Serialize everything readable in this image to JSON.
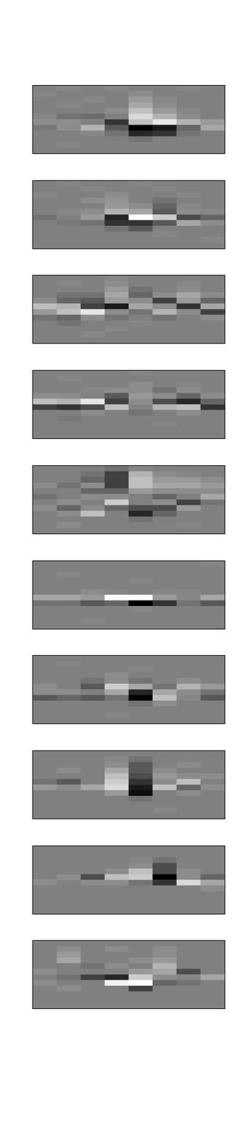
{
  "chart_data": [
    {
      "type": "heatmap",
      "tick_labels": false,
      "clim": [
        -1,
        1
      ],
      "cells": [
        [
          0,
          0.05,
          0,
          0.05,
          0,
          0,
          0.05,
          0
        ],
        [
          0.05,
          0,
          0,
          0,
          0.1,
          0,
          0,
          0
        ],
        [
          0,
          0,
          0.05,
          0,
          0.2,
          0.05,
          0,
          0
        ],
        [
          0,
          0.05,
          0,
          0,
          0.3,
          0.1,
          0,
          0
        ],
        [
          0,
          0,
          0,
          0.1,
          0.5,
          0.2,
          0.05,
          0
        ],
        [
          0.05,
          -0.1,
          -0.15,
          0,
          0.7,
          0.4,
          0.1,
          0
        ],
        [
          0.1,
          0.1,
          0,
          -0.6,
          0.5,
          0.8,
          0.4,
          0.2
        ],
        [
          -0.05,
          0.1,
          0.4,
          -0.3,
          -1,
          -0.8,
          -0.2,
          0.3
        ],
        [
          0,
          0,
          0.05,
          -0.1,
          -0.7,
          -0.6,
          -0.1,
          0
        ],
        [
          0,
          0,
          0,
          0,
          -0.1,
          0,
          0,
          0
        ],
        [
          0,
          0.05,
          0,
          0,
          0,
          0,
          0,
          0
        ],
        [
          0,
          0,
          0,
          0,
          0,
          0,
          0,
          0
        ]
      ]
    },
    {
      "type": "heatmap",
      "tick_labels": false,
      "clim": [
        -1,
        1
      ],
      "cells": [
        [
          0,
          0.05,
          0,
          0,
          0.05,
          0,
          0,
          0
        ],
        [
          0,
          0,
          0.05,
          0,
          0,
          0.05,
          0,
          0
        ],
        [
          0.05,
          0,
          0,
          0.1,
          0,
          0,
          0.05,
          0
        ],
        [
          0,
          0,
          0.1,
          0.15,
          0,
          -0.1,
          0,
          0
        ],
        [
          0,
          0,
          0,
          0.2,
          0.1,
          -0.2,
          0.05,
          0
        ],
        [
          0,
          0.05,
          0.1,
          0.4,
          0.3,
          -0.3,
          0.1,
          0.05
        ],
        [
          -0.1,
          0,
          0.2,
          -0.7,
          1,
          0.6,
          -0.4,
          -0.2
        ],
        [
          0,
          -0.05,
          -0.1,
          -0.6,
          -0.6,
          -0.3,
          0.3,
          0.1
        ],
        [
          0,
          0,
          0,
          -0.1,
          -0.3,
          0,
          0,
          0
        ],
        [
          0,
          0,
          0,
          0,
          0,
          0.05,
          0,
          0
        ],
        [
          0,
          0,
          0,
          0,
          0,
          0,
          0,
          0.05
        ],
        [
          0,
          0,
          0,
          0,
          0,
          0,
          0,
          0
        ]
      ]
    },
    {
      "type": "heatmap",
      "tick_labels": false,
      "clim": [
        -1,
        1
      ],
      "cells": [
        [
          0,
          0,
          0,
          0.05,
          0,
          0,
          0,
          0
        ],
        [
          0,
          0.05,
          0,
          0.1,
          0,
          0,
          0.05,
          0
        ],
        [
          0,
          0,
          0,
          0.2,
          -0.1,
          0,
          0.1,
          0
        ],
        [
          0,
          -0.1,
          -0.1,
          0.3,
          -0.2,
          0.1,
          0.3,
          0.1
        ],
        [
          0.1,
          -0.2,
          -0.3,
          0.2,
          0.1,
          -0.5,
          0.2,
          -0.2
        ],
        [
          0.5,
          0.4,
          -0.5,
          -0.8,
          0.3,
          0.1,
          -0.6,
          0.3
        ],
        [
          0.2,
          0.5,
          0.8,
          0.1,
          -0.1,
          0.4,
          0.1,
          -0.5
        ],
        [
          -0.1,
          -0.2,
          0.1,
          -0.1,
          0,
          -0.1,
          0,
          0.1
        ],
        [
          0,
          -0.1,
          0,
          0,
          0.05,
          0,
          0,
          0
        ],
        [
          0,
          0,
          0,
          0.05,
          0,
          0,
          0,
          0
        ],
        [
          0,
          0,
          0.05,
          0,
          0,
          0,
          0,
          0
        ],
        [
          0,
          0,
          0,
          0,
          0,
          0,
          0,
          0
        ]
      ]
    },
    {
      "type": "heatmap",
      "tick_labels": false,
      "clim": [
        -1,
        1
      ],
      "cells": [
        [
          0,
          0,
          0,
          0,
          0.05,
          0,
          0,
          0
        ],
        [
          0,
          0.05,
          0,
          0,
          0,
          0,
          0,
          0
        ],
        [
          0,
          0,
          0,
          0,
          0.1,
          0,
          0.05,
          0
        ],
        [
          0,
          0,
          0.05,
          0.1,
          0.1,
          -0.1,
          0.1,
          0
        ],
        [
          0.1,
          0.1,
          0,
          -0.3,
          0.2,
          0.1,
          -0.2,
          0.1
        ],
        [
          0.5,
          0.4,
          0.8,
          -0.5,
          0.1,
          -0.4,
          -0.7,
          -0.2
        ],
        [
          -0.5,
          -0.6,
          -0.4,
          0.5,
          0,
          0.4,
          0.5,
          -0.6
        ],
        [
          0,
          0,
          0.1,
          0,
          -0.1,
          0,
          0.1,
          0
        ],
        [
          0,
          -0.05,
          0,
          0,
          0,
          0,
          0,
          0
        ],
        [
          0,
          0,
          0,
          0,
          0,
          0.05,
          0,
          0
        ],
        [
          0,
          0,
          0,
          0,
          0,
          0,
          0,
          0
        ],
        [
          0,
          0,
          0,
          0,
          0,
          0,
          0,
          0
        ]
      ]
    },
    {
      "type": "heatmap",
      "tick_labels": false,
      "clim": [
        -1,
        1
      ],
      "cells": [
        [
          0,
          0,
          0,
          -0.1,
          0.05,
          0,
          0,
          0
        ],
        [
          0,
          0,
          -0.1,
          -0.5,
          0.4,
          0.1,
          0.05,
          0
        ],
        [
          0,
          0,
          -0.2,
          -0.5,
          0.5,
          0.2,
          0.2,
          0.1
        ],
        [
          0.1,
          -0.1,
          0.1,
          -0.5,
          0.5,
          0.3,
          0.3,
          0.2
        ],
        [
          0,
          0,
          -0.2,
          -0.2,
          0.2,
          0.1,
          0.1,
          0.1
        ],
        [
          -0.1,
          0,
          0.1,
          0.1,
          0,
          -0.2,
          0,
          0.3
        ],
        [
          0,
          0.1,
          0,
          0.6,
          0,
          0.1,
          -0.5,
          -0.1
        ],
        [
          0.1,
          -0.2,
          0.1,
          -0.2,
          -0.4,
          -0.4,
          0.2,
          0
        ],
        [
          0,
          0.1,
          0.5,
          0,
          -0.7,
          -0.2,
          0,
          0
        ],
        [
          0,
          0,
          0,
          0,
          -0.1,
          0,
          0,
          0
        ],
        [
          0,
          0.1,
          0,
          0,
          0,
          0,
          0.05,
          0
        ],
        [
          0,
          0,
          0,
          0,
          0,
          0,
          0,
          0
        ]
      ]
    },
    {
      "type": "heatmap",
      "tick_labels": false,
      "clim": [
        -1,
        1
      ],
      "cells": [
        [
          0,
          0,
          0,
          0,
          0,
          0,
          0,
          0.05
        ],
        [
          0,
          0,
          0,
          0,
          0,
          0,
          0,
          0
        ],
        [
          0,
          0.05,
          0,
          0,
          0,
          0,
          0,
          0
        ],
        [
          0,
          0,
          0,
          0,
          0.05,
          0,
          0,
          0
        ],
        [
          0,
          0,
          0,
          0,
          0,
          0,
          0,
          0
        ],
        [
          0,
          0,
          0.1,
          0.05,
          0,
          0.05,
          0.05,
          0
        ],
        [
          0.3,
          0.3,
          0.2,
          1,
          1,
          0.2,
          0.05,
          0.3
        ],
        [
          -0.1,
          -0.1,
          -0.3,
          -0.2,
          -1,
          -0.6,
          -0.1,
          -0.3
        ],
        [
          0,
          0,
          0,
          0,
          0.05,
          0,
          0,
          0
        ],
        [
          0,
          0,
          0,
          0,
          0,
          0,
          0,
          0
        ],
        [
          0,
          0,
          0.05,
          0,
          0,
          0,
          0,
          0
        ],
        [
          0,
          0,
          0,
          0,
          0,
          0,
          0,
          0
        ]
      ]
    },
    {
      "type": "heatmap",
      "tick_labels": false,
      "clim": [
        -1,
        1
      ],
      "cells": [
        [
          0,
          0,
          0,
          0,
          0,
          0,
          0,
          0
        ],
        [
          0,
          0.05,
          0,
          0,
          0,
          0,
          0,
          0
        ],
        [
          0,
          0,
          0,
          0,
          0.05,
          0,
          0,
          0
        ],
        [
          0,
          0,
          0,
          0.1,
          0,
          0,
          0,
          0
        ],
        [
          0,
          0,
          -0.1,
          0.1,
          -0.1,
          0,
          0.1,
          0
        ],
        [
          0.1,
          0,
          -0.3,
          0.6,
          0.3,
          -0.1,
          0.4,
          0.2
        ],
        [
          0.1,
          0.1,
          0,
          0.3,
          -0.7,
          0.3,
          0.1,
          -0.1
        ],
        [
          -0.3,
          -0.2,
          -0.3,
          -0.1,
          -1,
          0.5,
          0.05,
          -0.3
        ],
        [
          0,
          0,
          0,
          0,
          -0.1,
          0.1,
          0,
          0
        ],
        [
          0,
          0,
          0,
          0,
          0,
          0,
          0,
          0
        ],
        [
          0,
          0,
          0,
          0.05,
          0,
          0,
          0,
          0
        ],
        [
          0,
          0,
          0,
          0,
          0,
          0,
          0,
          0
        ]
      ]
    },
    {
      "type": "heatmap",
      "tick_labels": false,
      "clim": [
        -1,
        1
      ],
      "cells": [
        [
          0,
          0,
          0,
          0,
          0,
          0,
          0,
          0
        ],
        [
          0,
          0,
          0,
          0.05,
          -0.1,
          0,
          0,
          0
        ],
        [
          0,
          0,
          0,
          0.1,
          -0.3,
          0,
          0.1,
          0
        ],
        [
          0,
          0.1,
          0,
          0.3,
          -0.3,
          0.1,
          0,
          0
        ],
        [
          0,
          0,
          0,
          0.5,
          -0.4,
          0.2,
          0.1,
          0.1
        ],
        [
          -0.1,
          -0.3,
          0,
          0.6,
          -0.6,
          0.1,
          0.5,
          0
        ],
        [
          0.2,
          0.1,
          0.3,
          0.7,
          -0.8,
          0.5,
          -0.2,
          0.1
        ],
        [
          0,
          0,
          0,
          0.2,
          -0.9,
          0,
          0.1,
          0
        ],
        [
          0,
          0,
          0,
          0,
          -0.1,
          0,
          0,
          0
        ],
        [
          0,
          0,
          0,
          0,
          0,
          0,
          0,
          0
        ],
        [
          0,
          0,
          0,
          0,
          0,
          0.05,
          0,
          0
        ],
        [
          0,
          0,
          0,
          0,
          0,
          0,
          0,
          0
        ]
      ]
    },
    {
      "type": "heatmap",
      "tick_labels": false,
      "clim": [
        -1,
        1
      ],
      "cells": [
        [
          0,
          0,
          0,
          0,
          0,
          0,
          0,
          0
        ],
        [
          0,
          0,
          0,
          0,
          0,
          0,
          0,
          0
        ],
        [
          0,
          0,
          0,
          0,
          0.05,
          -0.1,
          0,
          0
        ],
        [
          0,
          0,
          0,
          0,
          0.1,
          -0.4,
          0,
          0
        ],
        [
          0,
          0,
          0,
          0.1,
          0.5,
          -0.4,
          0.1,
          0
        ],
        [
          0,
          0.1,
          -0.4,
          0.5,
          0.6,
          -1,
          0.1,
          -0.2
        ],
        [
          0.1,
          0,
          0.1,
          0.1,
          -0.1,
          -0.6,
          0.7,
          0.3
        ],
        [
          0,
          0,
          0,
          0,
          0,
          0,
          0,
          0.1
        ],
        [
          0,
          0,
          0,
          0,
          0,
          0,
          0,
          0
        ],
        [
          0,
          0,
          0,
          0,
          0,
          0,
          0,
          0
        ],
        [
          0,
          0,
          0,
          0,
          0,
          0,
          0,
          0
        ],
        [
          0,
          0,
          0,
          0,
          0,
          0,
          0,
          0
        ]
      ]
    },
    {
      "type": "heatmap",
      "tick_labels": false,
      "clim": [
        -1,
        1
      ],
      "cells": [
        [
          0,
          0,
          0,
          0,
          0,
          0,
          0,
          0
        ],
        [
          0,
          0.1,
          0,
          0.1,
          0,
          0.1,
          0,
          0
        ],
        [
          0,
          0.2,
          0,
          0,
          0,
          0.1,
          0,
          0
        ],
        [
          0,
          0.3,
          0,
          0,
          0.1,
          0.2,
          0,
          0
        ],
        [
          0,
          0,
          -0.1,
          0.1,
          0,
          0.4,
          0,
          0
        ],
        [
          0.1,
          0,
          0,
          0,
          0.2,
          0.3,
          -0.4,
          0
        ],
        [
          0,
          -0.1,
          -0.5,
          -0.7,
          0.6,
          0.1,
          0.05,
          0.3
        ],
        [
          0.1,
          0,
          0,
          0.9,
          1,
          -0.2,
          -0.1,
          0
        ],
        [
          0,
          0.1,
          0,
          0,
          -0.5,
          0,
          0,
          0
        ],
        [
          0,
          0,
          0,
          0,
          0,
          0,
          0,
          0
        ],
        [
          0,
          0,
          0,
          0,
          0,
          0,
          0,
          0
        ],
        [
          0,
          0,
          0,
          0,
          0,
          0,
          0,
          0
        ]
      ]
    }
  ]
}
